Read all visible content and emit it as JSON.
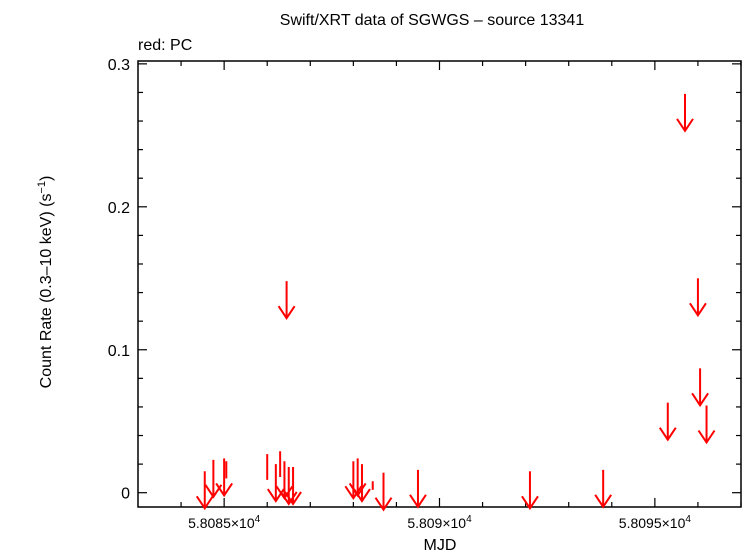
{
  "chart_data": {
    "type": "scatter",
    "title": "Swift/XRT data of SGWGS – source 13341",
    "subtitle": "red: PC",
    "xlabel": "MJD",
    "ylabel_main": "Count Rate (0.3–10 keV) (s",
    "ylabel_sup": "−1",
    "ylabel_end": ")",
    "xlim": [
      58083.0,
      58097.0
    ],
    "ylim": [
      -0.01,
      0.302
    ],
    "grid": false,
    "x_ticks": [
      {
        "value": 58085,
        "mantissa": "5.8085×10",
        "exp": "4"
      },
      {
        "value": 58090,
        "mantissa": "5.809×10",
        "exp": "4"
      },
      {
        "value": 58095,
        "mantissa": "5.8095×10",
        "exp": "4"
      }
    ],
    "y_ticks": [
      {
        "value": 0,
        "label": "0"
      },
      {
        "value": 0.1,
        "label": "0.1"
      },
      {
        "value": 0.2,
        "label": "0.2"
      },
      {
        "value": 0.3,
        "label": "0.3"
      }
    ],
    "series_color": "#ff0000",
    "upper_limits": [
      {
        "x": 58084.55,
        "y": 0.015
      },
      {
        "x": 58084.75,
        "y": 0.023
      },
      {
        "x": 58085.0,
        "y": 0.024
      },
      {
        "x": 58086.2,
        "y": 0.02
      },
      {
        "x": 58086.4,
        "y": 0.022
      },
      {
        "x": 58086.45,
        "y": 0.148
      },
      {
        "x": 58086.5,
        "y": 0.018
      },
      {
        "x": 58086.6,
        "y": 0.018
      },
      {
        "x": 58088.0,
        "y": 0.022
      },
      {
        "x": 58088.1,
        "y": 0.024
      },
      {
        "x": 58088.2,
        "y": 0.02
      },
      {
        "x": 58088.7,
        "y": 0.014
      },
      {
        "x": 58089.5,
        "y": 0.016
      },
      {
        "x": 58092.1,
        "y": 0.015
      },
      {
        "x": 58093.8,
        "y": 0.016
      },
      {
        "x": 58095.3,
        "y": 0.063
      },
      {
        "x": 58095.7,
        "y": 0.279
      },
      {
        "x": 58096.0,
        "y": 0.15
      },
      {
        "x": 58096.05,
        "y": 0.087
      },
      {
        "x": 58096.2,
        "y": 0.061
      }
    ],
    "error_bars": [
      {
        "x": 58085.05,
        "y": 0.016,
        "yerr": 0.006
      },
      {
        "x": 58086.0,
        "y": 0.018,
        "yerr": 0.009
      },
      {
        "x": 58086.3,
        "y": 0.02,
        "yerr": 0.009
      },
      {
        "x": 58088.45,
        "y": 0.005,
        "yerr": 0.003
      }
    ]
  }
}
